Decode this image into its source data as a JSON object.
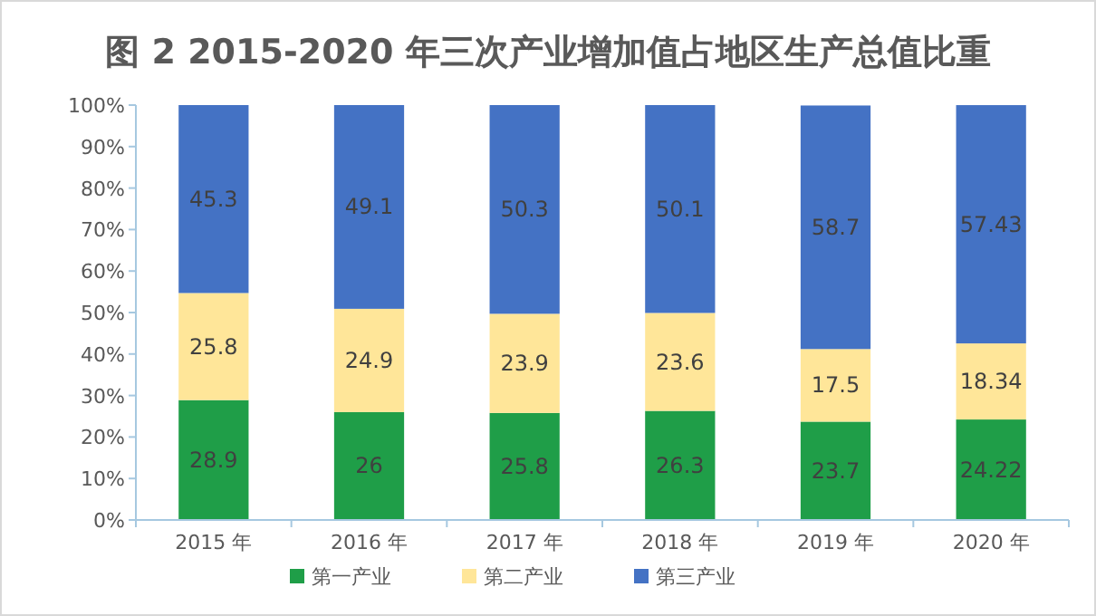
{
  "chart_data": {
    "type": "bar",
    "title": "图 2  2015-2020 年三次产业增加值占地区生产总值比重",
    "categories": [
      "2015 年",
      "2016 年",
      "2017 年",
      "2018 年",
      "2019 年",
      "2020 年"
    ],
    "stacked": true,
    "data_labels": true,
    "legend": "bottom",
    "grid": false,
    "ylim": [
      0,
      100
    ],
    "yticks": [
      {
        "value": 0,
        "label": "0%"
      },
      {
        "value": 10,
        "label": "10%"
      },
      {
        "value": 20,
        "label": "20%"
      },
      {
        "value": 30,
        "label": "30%"
      },
      {
        "value": 40,
        "label": "40%"
      },
      {
        "value": 50,
        "label": "50%"
      },
      {
        "value": 60,
        "label": "60%"
      },
      {
        "value": 70,
        "label": "70%"
      },
      {
        "value": 80,
        "label": "80%"
      },
      {
        "value": 90,
        "label": "90%"
      },
      {
        "value": 100,
        "label": "100%"
      }
    ],
    "series": [
      {
        "name": "第一产业",
        "color": "#1f9e48",
        "values": [
          28.9,
          26,
          25.8,
          26.3,
          23.7,
          24.22
        ]
      },
      {
        "name": "第二产业",
        "color": "#ffe699",
        "values": [
          25.8,
          24.9,
          23.9,
          23.6,
          17.5,
          18.34
        ]
      },
      {
        "name": "第三产业",
        "color": "#4472c4",
        "values": [
          45.3,
          49.1,
          50.3,
          50.1,
          58.7,
          57.43
        ]
      }
    ]
  }
}
